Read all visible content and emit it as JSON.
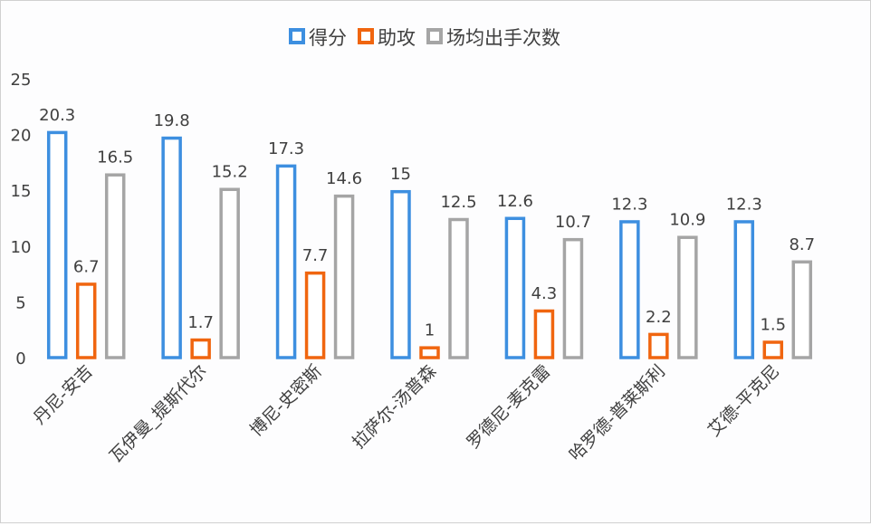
{
  "chart_data": {
    "type": "bar",
    "title": "",
    "xlabel": "",
    "ylabel": "",
    "ylim": [
      0,
      25
    ],
    "yticks": [
      0,
      5,
      10,
      15,
      20,
      25
    ],
    "grid": false,
    "legend_position": "top",
    "categories": [
      "丹尼-安吉",
      "瓦伊曼_提斯代尔",
      "博尼-史密斯",
      "拉萨尔-汤普森",
      "罗德尼-麦克雷",
      "哈罗德-普莱斯利",
      "艾德-平克尼"
    ],
    "series": [
      {
        "name": "得分",
        "color": "#3d8fe0",
        "values": [
          20.3,
          19.8,
          17.3,
          15,
          12.6,
          12.3,
          12.3
        ]
      },
      {
        "name": "助攻",
        "color": "#f0650f",
        "values": [
          6.7,
          1.7,
          7.7,
          1,
          4.3,
          2.2,
          1.5
        ]
      },
      {
        "name": "场均出手次数",
        "color": "#a5a5a5",
        "values": [
          16.5,
          15.2,
          14.6,
          12.5,
          10.7,
          10.9,
          8.7
        ]
      }
    ]
  }
}
